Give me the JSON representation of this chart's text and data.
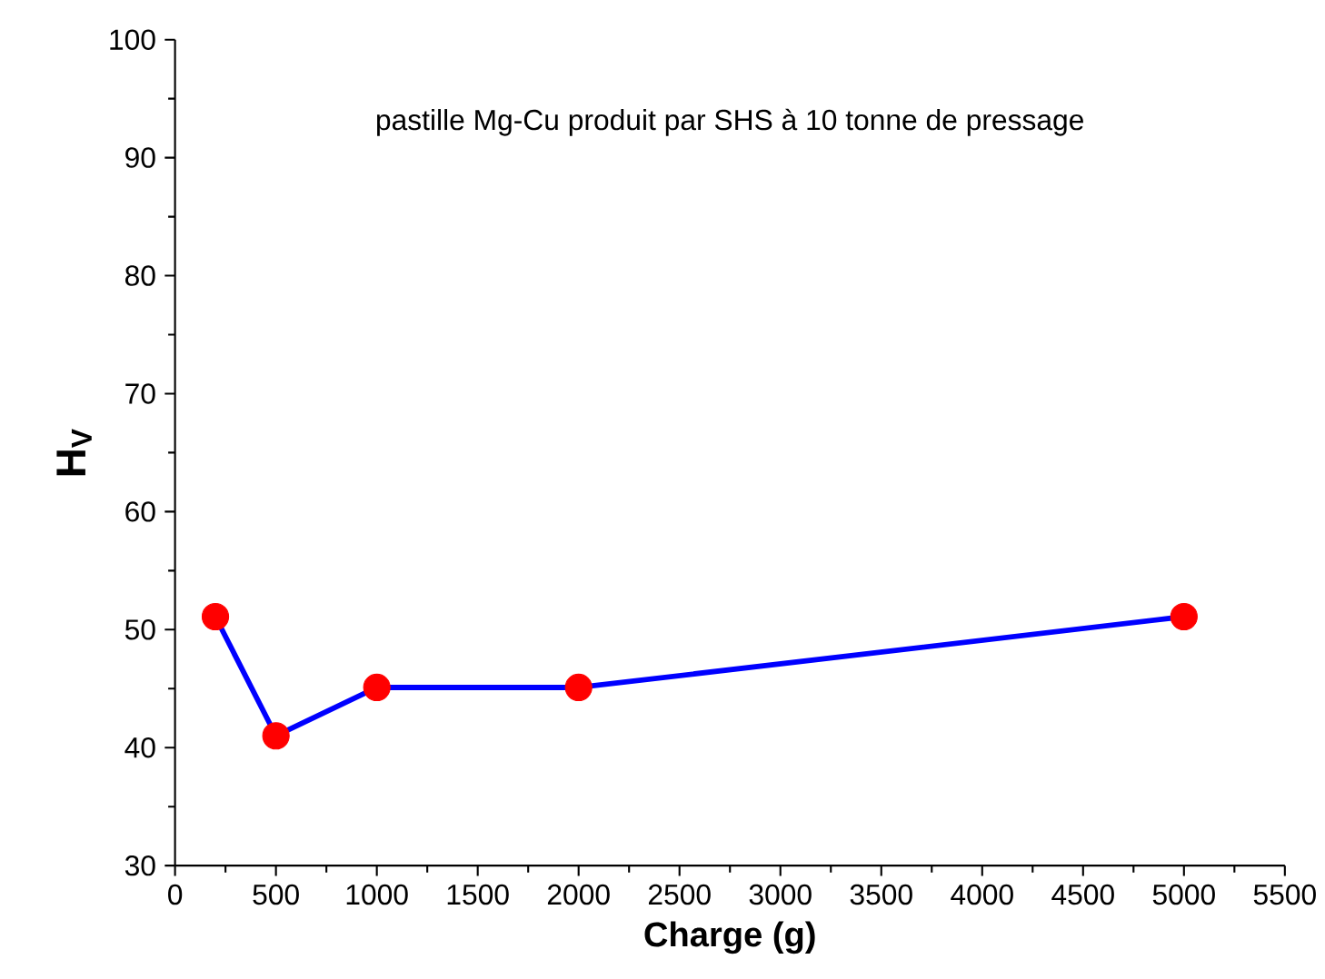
{
  "chart_data": {
    "type": "line",
    "annotations": [
      "pastille Mg-Cu produit par SHS à 10 tonne de pressage"
    ],
    "xlabel": "Charge (g)",
    "ylabel": "H$_{V}$",
    "x": [
      200,
      500,
      1000,
      2000,
      5000
    ],
    "series": [
      {
        "color": "#0000ff",
        "colors": [
          "#ff0000",
          "#ff0000",
          "#ff0000",
          "#ff0000",
          "#ff0000"
        ],
        "values": [
          51.1,
          41.0,
          45.1,
          45.1,
          51.1
        ]
      }
    ],
    "xlim": [
      0,
      5500
    ],
    "xticks": [
      0,
      500,
      1000,
      1500,
      2000,
      2500,
      3000,
      3500,
      4000,
      4500,
      5000,
      5500
    ],
    "ylim": [
      30,
      100
    ],
    "yticks": [
      30,
      40,
      50,
      60,
      70,
      80,
      90,
      100
    ],
    "grid": false,
    "marker": "circle",
    "line_style": "solid"
  }
}
